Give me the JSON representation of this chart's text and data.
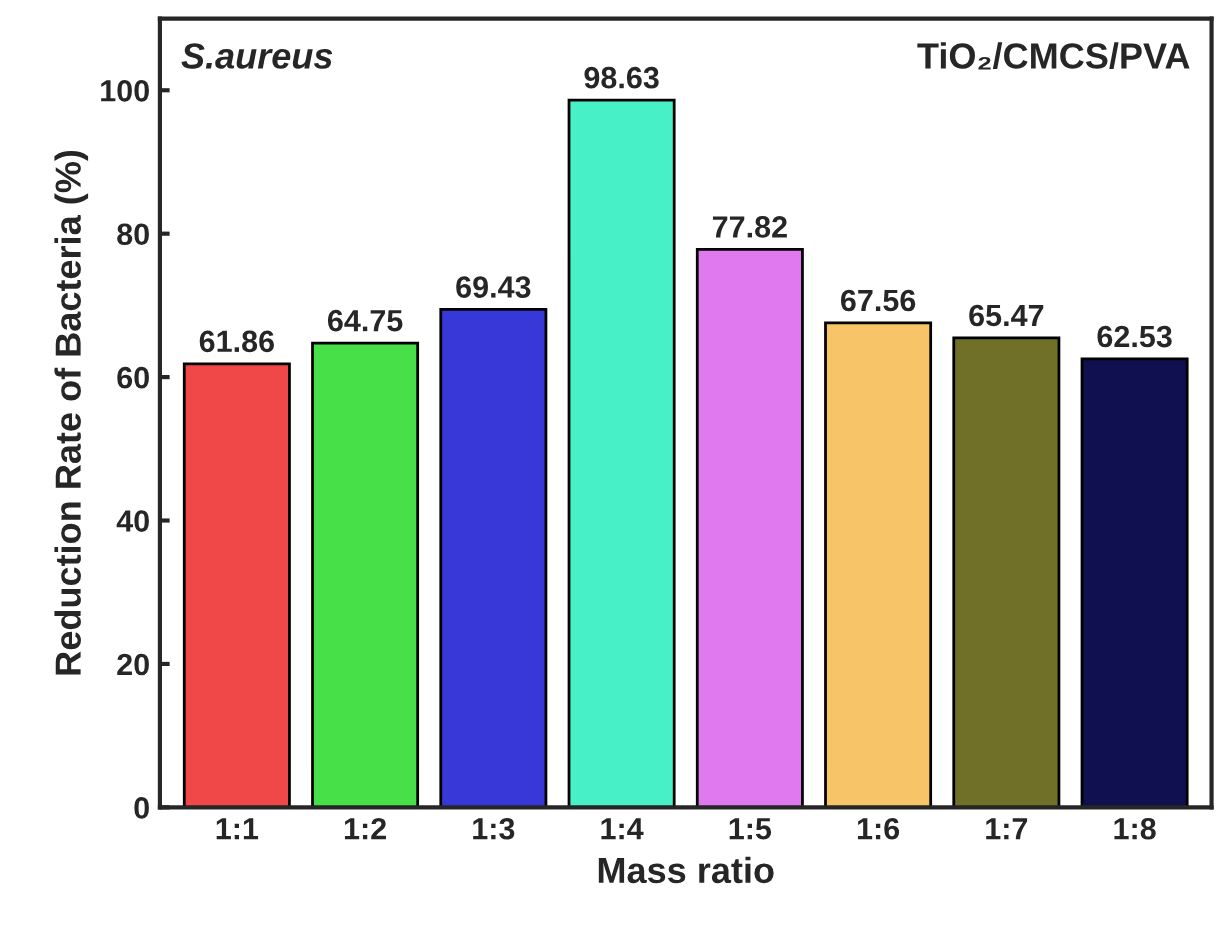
{
  "chart_data": {
    "type": "bar",
    "xlabel": "Mass ratio",
    "ylabel": "Reduction Rate of Bacteria (%)",
    "categories": [
      "1:1",
      "1:2",
      "1:3",
      "1:4",
      "1:5",
      "1:6",
      "1:7",
      "1:8"
    ],
    "values": [
      61.86,
      64.75,
      69.43,
      98.63,
      77.82,
      67.56,
      65.47,
      62.53
    ],
    "colors": [
      "#f04848",
      "#48e048",
      "#3838d8",
      "#48f0c8",
      "#e078f0",
      "#f8c468",
      "#707028",
      "#101050"
    ],
    "data_labels": true,
    "ylim": [
      0,
      110
    ],
    "yticks": [
      0,
      20,
      40,
      60,
      80,
      100
    ],
    "grid": false,
    "legend": false,
    "annotations": [
      "S.aureus",
      "TiO₂/CMCS/PVA"
    ]
  }
}
